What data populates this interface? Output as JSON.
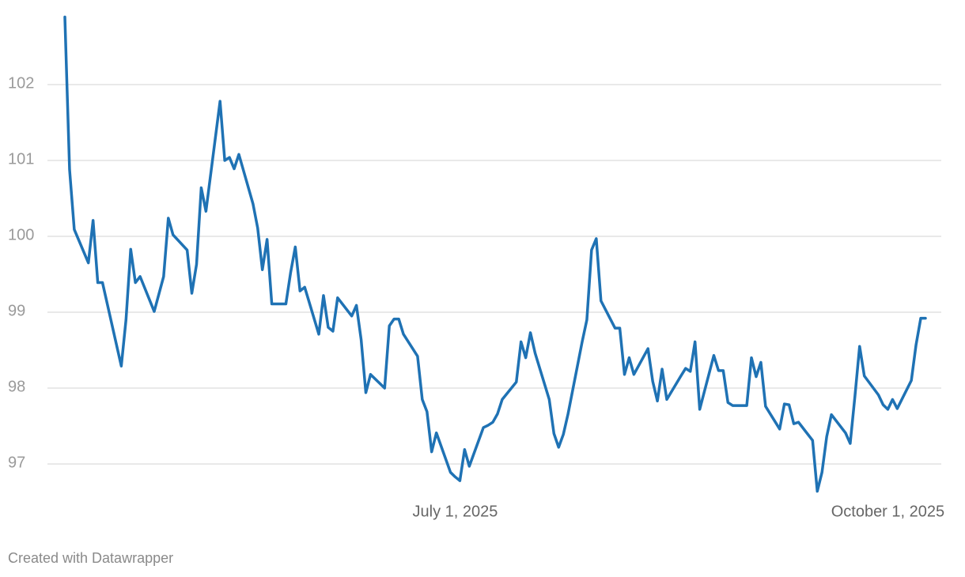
{
  "chart_data": {
    "type": "line",
    "credit": "Created with Datawrapper",
    "x": [
      "2025-04-09",
      "2025-04-10",
      "2025-04-11",
      "2025-04-14",
      "2025-04-15",
      "2025-04-16",
      "2025-04-17",
      "2025-04-21",
      "2025-04-22",
      "2025-04-23",
      "2025-04-24",
      "2025-04-25",
      "2025-04-28",
      "2025-04-30",
      "2025-05-01",
      "2025-05-02",
      "2025-05-05",
      "2025-05-06",
      "2025-05-07",
      "2025-05-08",
      "2025-05-09",
      "2025-05-12",
      "2025-05-13",
      "2025-05-14",
      "2025-05-15",
      "2025-05-16",
      "2025-05-19",
      "2025-05-20",
      "2025-05-21",
      "2025-05-22",
      "2025-05-23",
      "2025-05-26",
      "2025-05-27",
      "2025-05-28",
      "2025-05-29",
      "2025-05-30",
      "2025-06-02",
      "2025-06-03",
      "2025-06-04",
      "2025-06-05",
      "2025-06-06",
      "2025-06-09",
      "2025-06-10",
      "2025-06-11",
      "2025-06-12",
      "2025-06-13",
      "2025-06-16",
      "2025-06-17",
      "2025-06-18",
      "2025-06-19",
      "2025-06-20",
      "2025-06-23",
      "2025-06-24",
      "2025-06-25",
      "2025-06-26",
      "2025-06-27",
      "2025-06-30",
      "2025-07-01",
      "2025-07-02",
      "2025-07-03",
      "2025-07-04",
      "2025-07-07",
      "2025-07-08",
      "2025-07-09",
      "2025-07-10",
      "2025-07-11",
      "2025-07-14",
      "2025-07-15",
      "2025-07-16",
      "2025-07-17",
      "2025-07-18",
      "2025-07-21",
      "2025-07-22",
      "2025-07-23",
      "2025-07-24",
      "2025-07-25",
      "2025-07-28",
      "2025-07-29",
      "2025-07-30",
      "2025-07-31",
      "2025-08-01",
      "2025-08-04",
      "2025-08-05",
      "2025-08-06",
      "2025-08-07",
      "2025-08-08",
      "2025-08-11",
      "2025-08-12",
      "2025-08-13",
      "2025-08-14",
      "2025-08-15",
      "2025-08-18",
      "2025-08-19",
      "2025-08-20",
      "2025-08-21",
      "2025-08-22",
      "2025-08-25",
      "2025-08-26",
      "2025-08-27",
      "2025-08-28",
      "2025-08-29",
      "2025-09-01",
      "2025-09-02",
      "2025-09-03",
      "2025-09-04",
      "2025-09-05",
      "2025-09-08",
      "2025-09-09",
      "2025-09-10",
      "2025-09-11",
      "2025-09-12",
      "2025-09-15",
      "2025-09-16",
      "2025-09-17",
      "2025-09-18",
      "2025-09-19",
      "2025-09-22",
      "2025-09-23",
      "2025-09-24",
      "2025-09-25",
      "2025-09-26",
      "2025-09-29",
      "2025-09-30",
      "2025-10-01",
      "2025-10-02",
      "2025-10-03",
      "2025-10-06",
      "2025-10-07",
      "2025-10-08",
      "2025-10-09"
    ],
    "series": [
      {
        "color": "#1f72b4",
        "values": [
          102.89,
          100.88,
          100.09,
          99.65,
          100.21,
          99.39,
          99.39,
          98.29,
          98.9,
          99.83,
          99.39,
          99.47,
          99.01,
          99.47,
          100.24,
          100.02,
          99.82,
          99.25,
          99.63,
          100.64,
          100.33,
          101.78,
          101.0,
          101.04,
          100.89,
          101.08,
          100.43,
          100.11,
          99.56,
          99.96,
          99.11,
          99.11,
          99.52,
          99.86,
          99.28,
          99.33,
          98.71,
          99.22,
          98.8,
          98.75,
          99.19,
          98.95,
          99.09,
          98.64,
          97.94,
          98.18,
          98.0,
          98.82,
          98.91,
          98.91,
          98.71,
          98.42,
          97.85,
          97.69,
          97.16,
          97.41,
          96.89,
          96.83,
          96.78,
          97.19,
          96.97,
          97.48,
          97.51,
          97.55,
          97.66,
          97.85,
          98.08,
          98.61,
          98.4,
          98.73,
          98.46,
          97.85,
          97.4,
          97.22,
          97.39,
          97.66,
          98.61,
          98.9,
          99.82,
          99.97,
          99.15,
          98.79,
          98.79,
          98.18,
          98.4,
          98.18,
          98.52,
          98.09,
          97.83,
          98.25,
          97.85,
          98.16,
          98.26,
          98.22,
          98.61,
          97.72,
          98.43,
          98.23,
          98.23,
          97.81,
          97.77,
          97.77,
          98.4,
          98.15,
          98.34,
          97.76,
          97.46,
          97.79,
          97.78,
          97.53,
          97.55,
          97.31,
          96.64,
          96.89,
          97.36,
          97.65,
          97.41,
          97.27,
          97.89,
          98.55,
          98.16,
          97.91,
          97.78,
          97.72,
          97.85,
          97.73,
          98.1,
          98.57,
          98.92,
          98.92
        ]
      }
    ],
    "xlim": [
      "2025-04-09",
      "2025-10-09"
    ],
    "xticks": [
      {
        "value": "2025-07-01",
        "label": "July 1, 2025"
      },
      {
        "value": "2025-10-01",
        "label": "October 1, 2025"
      }
    ],
    "ylim": [
      96.5,
      103
    ],
    "yticks": [
      97,
      98,
      99,
      100,
      101,
      102
    ],
    "grid": true
  }
}
